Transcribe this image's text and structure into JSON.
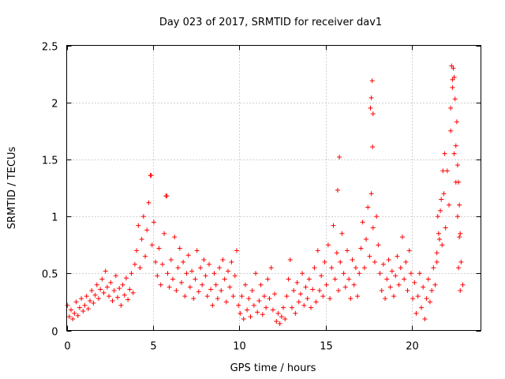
{
  "chart_data": {
    "type": "scatter",
    "title": "Day 023 of 2017, SRMTID for receiver dav1",
    "xlabel": "GPS time / hours",
    "ylabel": "SRMTID / TECUs",
    "xlim": [
      0,
      24
    ],
    "ylim": [
      0,
      2.5
    ],
    "xticks": [
      0,
      5,
      10,
      15,
      20
    ],
    "yticks": [
      0,
      0.5,
      1,
      1.5,
      2,
      2.5
    ],
    "xtick_labels": [
      "0",
      "5",
      "10",
      "15",
      "20"
    ],
    "ytick_labels": [
      "0",
      "0.5",
      "1",
      "1.5",
      "2",
      "2.5"
    ],
    "grid": true,
    "marker": "+",
    "marker_color": "#ff0000",
    "series": [
      {
        "name": "dav1",
        "points": [
          [
            0.05,
            0.22
          ],
          [
            0.15,
            0.12
          ],
          [
            0.25,
            0.18
          ],
          [
            0.35,
            0.1
          ],
          [
            0.45,
            0.15
          ],
          [
            0.55,
            0.25
          ],
          [
            0.65,
            0.13
          ],
          [
            0.75,
            0.2
          ],
          [
            0.85,
            0.28
          ],
          [
            0.95,
            0.17
          ],
          [
            1.05,
            0.22
          ],
          [
            1.15,
            0.3
          ],
          [
            1.25,
            0.19
          ],
          [
            1.35,
            0.26
          ],
          [
            1.45,
            0.35
          ],
          [
            1.55,
            0.24
          ],
          [
            1.65,
            0.31
          ],
          [
            1.75,
            0.4
          ],
          [
            1.85,
            0.28
          ],
          [
            1.95,
            0.36
          ],
          [
            2.05,
            0.45
          ],
          [
            2.15,
            0.33
          ],
          [
            2.25,
            0.52
          ],
          [
            2.35,
            0.38
          ],
          [
            2.45,
            0.3
          ],
          [
            2.55,
            0.42
          ],
          [
            2.65,
            0.26
          ],
          [
            2.75,
            0.35
          ],
          [
            2.85,
            0.48
          ],
          [
            2.95,
            0.29
          ],
          [
            3.05,
            0.37
          ],
          [
            3.15,
            0.22
          ],
          [
            3.25,
            0.4
          ],
          [
            3.35,
            0.31
          ],
          [
            3.45,
            0.46
          ],
          [
            3.55,
            0.27
          ],
          [
            3.65,
            0.36
          ],
          [
            3.75,
            0.5
          ],
          [
            3.85,
            0.33
          ],
          [
            3.95,
            0.58
          ],
          [
            4.05,
            0.7
          ],
          [
            4.15,
            0.92
          ],
          [
            4.25,
            0.55
          ],
          [
            4.35,
            0.8
          ],
          [
            4.45,
            1.0
          ],
          [
            4.55,
            0.65
          ],
          [
            4.65,
            0.88
          ],
          [
            4.75,
            1.12
          ],
          [
            4.85,
            1.36
          ],
          [
            4.95,
            0.75
          ],
          [
            5.05,
            0.95
          ],
          [
            5.15,
            0.6
          ],
          [
            5.25,
            0.48
          ],
          [
            5.35,
            0.72
          ],
          [
            5.45,
            0.4
          ],
          [
            5.55,
            0.58
          ],
          [
            5.65,
            0.85
          ],
          [
            5.75,
            1.18
          ],
          [
            5.85,
            0.5
          ],
          [
            5.95,
            0.38
          ],
          [
            6.05,
            0.62
          ],
          [
            6.15,
            0.45
          ],
          [
            6.25,
            0.82
          ],
          [
            6.35,
            0.35
          ],
          [
            6.45,
            0.55
          ],
          [
            6.55,
            0.72
          ],
          [
            6.65,
            0.42
          ],
          [
            6.75,
            0.6
          ],
          [
            6.85,
            0.3
          ],
          [
            6.95,
            0.5
          ],
          [
            7.05,
            0.66
          ],
          [
            7.15,
            0.38
          ],
          [
            7.25,
            0.52
          ],
          [
            7.35,
            0.28
          ],
          [
            7.45,
            0.45
          ],
          [
            7.55,
            0.7
          ],
          [
            7.65,
            0.34
          ],
          [
            7.75,
            0.55
          ],
          [
            7.85,
            0.4
          ],
          [
            7.95,
            0.62
          ],
          [
            8.05,
            0.48
          ],
          [
            8.15,
            0.3
          ],
          [
            8.25,
            0.58
          ],
          [
            8.35,
            0.36
          ],
          [
            8.45,
            0.22
          ],
          [
            8.55,
            0.5
          ],
          [
            8.65,
            0.4
          ],
          [
            8.75,
            0.28
          ],
          [
            8.85,
            0.55
          ],
          [
            8.95,
            0.35
          ],
          [
            9.05,
            0.62
          ],
          [
            9.15,
            0.45
          ],
          [
            9.25,
            0.25
          ],
          [
            9.35,
            0.52
          ],
          [
            9.45,
            0.38
          ],
          [
            9.55,
            0.6
          ],
          [
            9.65,
            0.3
          ],
          [
            9.75,
            0.48
          ],
          [
            9.85,
            0.7
          ],
          [
            9.95,
            0.22
          ],
          [
            10.05,
            0.15
          ],
          [
            10.15,
            0.3
          ],
          [
            10.25,
            0.1
          ],
          [
            10.35,
            0.4
          ],
          [
            10.45,
            0.18
          ],
          [
            10.55,
            0.28
          ],
          [
            10.65,
            0.12
          ],
          [
            10.75,
            0.35
          ],
          [
            10.85,
            0.22
          ],
          [
            10.95,
            0.5
          ],
          [
            11.05,
            0.16
          ],
          [
            11.15,
            0.26
          ],
          [
            11.25,
            0.4
          ],
          [
            11.35,
            0.14
          ],
          [
            11.45,
            0.3
          ],
          [
            11.55,
            0.2
          ],
          [
            11.65,
            0.45
          ],
          [
            11.75,
            0.28
          ],
          [
            11.85,
            0.55
          ],
          [
            11.95,
            0.18
          ],
          [
            12.05,
            0.32
          ],
          [
            12.15,
            0.08
          ],
          [
            12.25,
            0.15
          ],
          [
            12.35,
            0.06
          ],
          [
            12.45,
            0.12
          ],
          [
            12.55,
            0.2
          ],
          [
            12.65,
            0.1
          ],
          [
            12.75,
            0.3
          ],
          [
            12.85,
            0.45
          ],
          [
            12.95,
            0.62
          ],
          [
            13.05,
            0.2
          ],
          [
            13.15,
            0.35
          ],
          [
            13.25,
            0.15
          ],
          [
            13.35,
            0.42
          ],
          [
            13.45,
            0.25
          ],
          [
            13.55,
            0.32
          ],
          [
            13.65,
            0.5
          ],
          [
            13.75,
            0.22
          ],
          [
            13.85,
            0.38
          ],
          [
            13.95,
            0.28
          ],
          [
            14.05,
            0.45
          ],
          [
            14.15,
            0.2
          ],
          [
            14.25,
            0.36
          ],
          [
            14.35,
            0.55
          ],
          [
            14.45,
            0.25
          ],
          [
            14.55,
            0.7
          ],
          [
            14.65,
            0.35
          ],
          [
            14.75,
            0.48
          ],
          [
            14.85,
            0.3
          ],
          [
            14.95,
            0.6
          ],
          [
            15.05,
            0.4
          ],
          [
            15.15,
            0.75
          ],
          [
            15.25,
            0.28
          ],
          [
            15.35,
            0.55
          ],
          [
            15.45,
            0.92
          ],
          [
            15.55,
            0.45
          ],
          [
            15.65,
            0.68
          ],
          [
            15.75,
            0.35
          ],
          [
            15.85,
            0.6
          ],
          [
            15.95,
            0.85
          ],
          [
            16.05,
            0.5
          ],
          [
            16.15,
            0.38
          ],
          [
            16.25,
            0.7
          ],
          [
            16.35,
            0.45
          ],
          [
            16.45,
            0.28
          ],
          [
            16.55,
            0.62
          ],
          [
            16.65,
            0.4
          ],
          [
            16.75,
            0.55
          ],
          [
            16.85,
            0.3
          ],
          [
            16.95,
            0.5
          ],
          [
            17.05,
            0.72
          ],
          [
            17.15,
            0.95
          ],
          [
            17.25,
            0.55
          ],
          [
            17.35,
            0.8
          ],
          [
            17.45,
            1.08
          ],
          [
            17.55,
            0.65
          ],
          [
            17.65,
            1.2
          ],
          [
            17.75,
            0.9
          ],
          [
            17.85,
            0.6
          ],
          [
            17.95,
            1.0
          ],
          [
            18.05,
            0.75
          ],
          [
            18.15,
            0.5
          ],
          [
            18.25,
            0.35
          ],
          [
            18.35,
            0.58
          ],
          [
            18.45,
            0.28
          ],
          [
            18.55,
            0.45
          ],
          [
            18.65,
            0.62
          ],
          [
            18.75,
            0.38
          ],
          [
            18.85,
            0.52
          ],
          [
            18.95,
            0.3
          ],
          [
            19.05,
            0.48
          ],
          [
            19.15,
            0.65
          ],
          [
            19.25,
            0.4
          ],
          [
            19.35,
            0.55
          ],
          [
            19.45,
            0.82
          ],
          [
            19.55,
            0.45
          ],
          [
            19.65,
            0.6
          ],
          [
            19.75,
            0.35
          ],
          [
            19.85,
            0.7
          ],
          [
            19.95,
            0.5
          ],
          [
            20.05,
            0.28
          ],
          [
            20.15,
            0.42
          ],
          [
            20.25,
            0.15
          ],
          [
            20.35,
            0.3
          ],
          [
            20.45,
            0.5
          ],
          [
            20.55,
            0.2
          ],
          [
            20.65,
            0.38
          ],
          [
            20.75,
            0.1
          ],
          [
            20.85,
            0.28
          ],
          [
            20.95,
            0.45
          ],
          [
            21.05,
            0.25
          ],
          [
            21.15,
            0.35
          ],
          [
            21.25,
            0.55
          ],
          [
            21.35,
            0.4
          ],
          [
            21.45,
            0.68
          ],
          [
            21.55,
            0.85
          ],
          [
            21.65,
            1.05
          ],
          [
            21.75,
            0.75
          ],
          [
            21.85,
            1.2
          ],
          [
            21.95,
            0.9
          ],
          [
            22.05,
            1.4
          ],
          [
            22.15,
            1.1
          ],
          [
            22.25,
            1.75
          ],
          [
            22.35,
            2.2
          ],
          [
            22.45,
            1.55
          ],
          [
            22.55,
            1.3
          ],
          [
            22.65,
            1.0
          ],
          [
            22.75,
            0.82
          ],
          [
            22.85,
            0.6
          ],
          [
            22.95,
            0.4
          ],
          [
            17.7,
            2.19
          ],
          [
            17.65,
            2.04
          ],
          [
            17.6,
            1.95
          ],
          [
            17.75,
            1.9
          ],
          [
            17.72,
            1.61
          ],
          [
            15.8,
            1.52
          ],
          [
            15.7,
            1.23
          ],
          [
            4.9,
            1.36
          ],
          [
            5.8,
            1.18
          ],
          [
            22.3,
            2.32
          ],
          [
            22.4,
            2.3
          ],
          [
            22.35,
            2.13
          ],
          [
            22.45,
            2.22
          ],
          [
            22.5,
            2.03
          ],
          [
            22.25,
            1.95
          ],
          [
            22.6,
            1.83
          ],
          [
            22.55,
            1.62
          ],
          [
            22.65,
            1.45
          ],
          [
            22.7,
            1.3
          ],
          [
            22.75,
            1.1
          ],
          [
            22.8,
            0.85
          ],
          [
            22.7,
            0.55
          ],
          [
            22.8,
            0.35
          ],
          [
            21.5,
            1.0
          ],
          [
            21.45,
            0.6
          ],
          [
            21.6,
            0.8
          ],
          [
            21.7,
            1.15
          ],
          [
            21.8,
            1.4
          ],
          [
            21.9,
            1.55
          ]
        ]
      }
    ]
  }
}
